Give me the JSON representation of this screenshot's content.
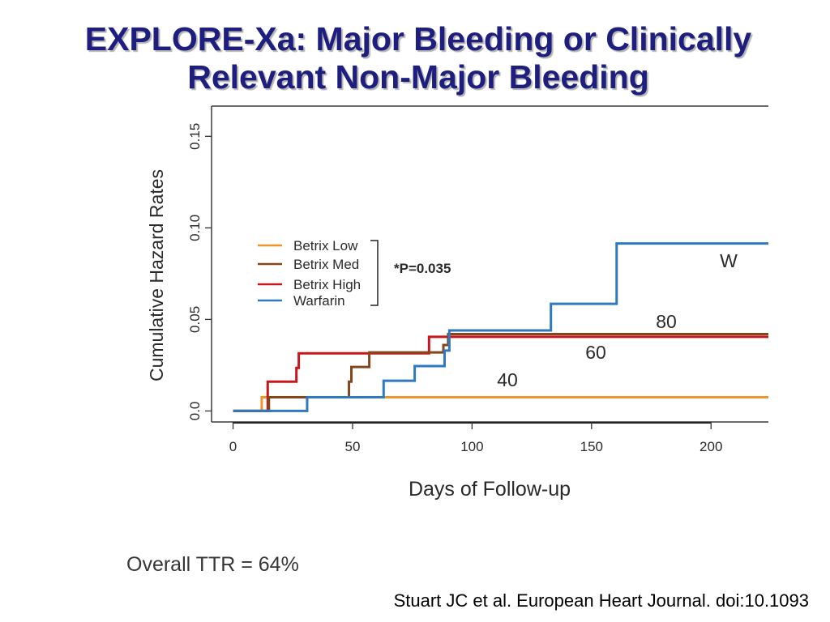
{
  "slide": {
    "title_line1": "EXPLORE-Xa: Major Bleeding or Clinically",
    "title_line2": "Relevant Non-Major Bleeding",
    "title_color": "#1E1E7E",
    "footnote": "Overall TTR = 64%",
    "citation": "Stuart JC et al. European Heart Journal. doi:10.1093"
  },
  "chart_data": {
    "type": "line",
    "line_style": "step",
    "xlabel": "Days of Follow-up",
    "ylabel": "Cumulative Hazard Rates",
    "xlim": [
      -9,
      224
    ],
    "ylim": [
      -0.006,
      0.1665
    ],
    "xticks": [
      0,
      50,
      100,
      150,
      200
    ],
    "xtick_labels": [
      "0",
      "50",
      "100",
      "150",
      "200"
    ],
    "yticks": [
      0,
      0.05,
      0.1,
      0.15
    ],
    "ytick_labels": [
      "0.0",
      "0.05",
      "0.10",
      "0.15"
    ],
    "grid": false,
    "legend": {
      "position": "left"
    },
    "series": [
      {
        "name": "Betrix Low",
        "color": "#F0952A",
        "x": [
          0,
          12
        ],
        "y": [
          0,
          0.0075
        ]
      },
      {
        "name": "Betrix Med",
        "color": "#84471C",
        "x": [
          0,
          15,
          48.5,
          49.5,
          57,
          88,
          90
        ],
        "y": [
          0,
          0.0075,
          0.016,
          0.024,
          0.032,
          0.036,
          0.042
        ]
      },
      {
        "name": "Betrix High",
        "color": "#C8161D",
        "x": [
          0,
          14.5,
          26.5,
          27.5,
          82
        ],
        "y": [
          0,
          0.016,
          0.0235,
          0.0315,
          0.0405
        ]
      },
      {
        "name": "Warfarin",
        "color": "#2F79BF",
        "x": [
          0,
          31,
          63,
          76,
          88.5,
          90.5,
          133,
          160.5
        ],
        "y": [
          0,
          0.0075,
          0.0165,
          0.0245,
          0.033,
          0.044,
          0.0585,
          0.0915
        ]
      }
    ],
    "p_value_label": "*P=0.035",
    "curve_labels": [
      "W",
      "80",
      "60",
      "40"
    ]
  }
}
